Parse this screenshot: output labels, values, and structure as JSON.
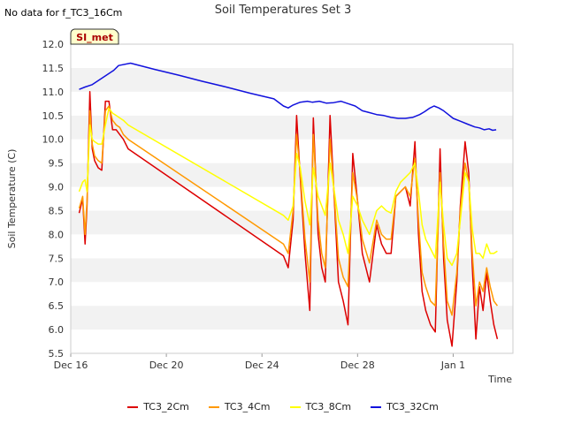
{
  "header": {
    "nodata_text": "No data for f_TC3_16Cm",
    "title": "Soil Temperatures Set 3"
  },
  "badge": {
    "label": "SI_met"
  },
  "chart_data": {
    "type": "line",
    "title": "Soil Temperatures Set 3",
    "xlabel": "Time",
    "ylabel": "Soil Temperature (C)",
    "xlim": [
      0,
      18.5
    ],
    "ylim": [
      5.5,
      12.0
    ],
    "yticks": [
      5.5,
      6.0,
      6.5,
      7.0,
      7.5,
      8.0,
      8.5,
      9.0,
      9.5,
      10.0,
      10.5,
      11.0,
      11.5,
      12.0
    ],
    "xticks": [
      {
        "value": 0,
        "label": "Dec 16"
      },
      {
        "value": 4,
        "label": "Dec 20"
      },
      {
        "value": 8,
        "label": "Dec 24"
      },
      {
        "value": 12,
        "label": "Dec 28"
      },
      {
        "value": 16,
        "label": "Jan 1"
      }
    ],
    "x_unit": "days since Dec 16",
    "grid": "alternating horizontal bands",
    "legend_position": "bottom",
    "series": [
      {
        "name": "TC3_2Cm",
        "color": "#dd0000",
        "x": [
          0.35,
          0.5,
          0.6,
          0.68,
          0.8,
          0.9,
          1.0,
          1.15,
          1.3,
          1.45,
          1.6,
          1.75,
          1.9,
          2.05,
          2.2,
          2.4,
          8.9,
          9.1,
          9.3,
          9.45,
          9.6,
          9.8,
          10.0,
          10.15,
          10.35,
          10.5,
          10.65,
          10.85,
          11.0,
          11.2,
          11.4,
          11.6,
          11.8,
          12.0,
          12.2,
          12.5,
          12.8,
          13.0,
          13.2,
          13.4,
          13.6,
          13.8,
          14.0,
          14.2,
          14.4,
          14.55,
          14.7,
          14.85,
          15.05,
          15.25,
          15.45,
          15.6,
          15.75,
          15.95,
          16.15,
          16.3,
          16.5,
          16.65,
          16.8,
          16.95,
          17.1,
          17.25,
          17.4,
          17.55,
          17.7,
          17.85
        ],
        "values": [
          8.45,
          8.75,
          7.8,
          8.6,
          11.0,
          9.8,
          9.55,
          9.4,
          9.35,
          10.8,
          10.8,
          10.2,
          10.2,
          10.1,
          10.0,
          9.8,
          7.55,
          7.3,
          8.3,
          10.5,
          9.2,
          7.6,
          6.4,
          10.45,
          8.0,
          7.3,
          7.0,
          10.5,
          9.0,
          7.0,
          6.6,
          6.1,
          9.7,
          8.7,
          7.6,
          7.0,
          8.2,
          7.8,
          7.6,
          7.6,
          8.8,
          8.9,
          9.0,
          8.6,
          9.95,
          8.0,
          6.8,
          6.4,
          6.1,
          5.95,
          9.8,
          7.5,
          6.2,
          5.65,
          7.0,
          8.6,
          9.95,
          9.3,
          7.3,
          5.8,
          6.9,
          6.4,
          7.2,
          6.6,
          6.1,
          5.8
        ]
      },
      {
        "name": "TC3_4Cm",
        "color": "#ff9900",
        "x": [
          0.35,
          0.5,
          0.6,
          0.68,
          0.8,
          0.9,
          1.0,
          1.15,
          1.3,
          1.45,
          1.6,
          1.75,
          1.9,
          2.05,
          2.2,
          2.4,
          8.9,
          9.1,
          9.3,
          9.45,
          9.6,
          9.8,
          10.0,
          10.15,
          10.35,
          10.5,
          10.65,
          10.85,
          11.0,
          11.2,
          11.4,
          11.6,
          11.8,
          12.0,
          12.2,
          12.5,
          12.8,
          13.0,
          13.2,
          13.4,
          13.6,
          13.8,
          14.0,
          14.2,
          14.4,
          14.55,
          14.7,
          14.85,
          15.05,
          15.25,
          15.45,
          15.6,
          15.75,
          15.95,
          16.15,
          16.3,
          16.5,
          16.65,
          16.8,
          16.95,
          17.1,
          17.25,
          17.4,
          17.55,
          17.7,
          17.85
        ],
        "values": [
          8.55,
          8.8,
          8.0,
          8.7,
          10.6,
          9.9,
          9.65,
          9.55,
          9.5,
          10.6,
          10.7,
          10.4,
          10.3,
          10.25,
          10.1,
          10.0,
          7.8,
          7.6,
          8.5,
          10.1,
          9.3,
          7.9,
          7.0,
          10.1,
          8.3,
          7.6,
          7.3,
          10.0,
          9.0,
          7.5,
          7.1,
          6.9,
          9.3,
          8.7,
          7.9,
          7.4,
          8.3,
          8.0,
          7.9,
          7.9,
          8.8,
          8.9,
          9.0,
          8.8,
          9.6,
          8.3,
          7.2,
          6.9,
          6.6,
          6.5,
          9.3,
          7.8,
          6.6,
          6.3,
          7.2,
          8.5,
          9.5,
          9.1,
          7.6,
          6.5,
          7.0,
          6.8,
          7.3,
          6.9,
          6.6,
          6.5
        ]
      },
      {
        "name": "TC3_8Cm",
        "color": "#ffff00",
        "x": [
          0.35,
          0.5,
          0.6,
          0.68,
          0.8,
          0.9,
          1.0,
          1.15,
          1.3,
          1.45,
          1.6,
          1.75,
          1.9,
          2.05,
          2.2,
          2.4,
          8.9,
          9.1,
          9.3,
          9.45,
          9.6,
          9.8,
          10.0,
          10.15,
          10.35,
          10.5,
          10.65,
          10.85,
          11.0,
          11.2,
          11.4,
          11.6,
          11.8,
          12.0,
          12.2,
          12.5,
          12.8,
          13.0,
          13.2,
          13.4,
          13.6,
          13.8,
          14.0,
          14.2,
          14.4,
          14.55,
          14.7,
          14.85,
          15.05,
          15.25,
          15.45,
          15.6,
          15.75,
          15.95,
          16.15,
          16.3,
          16.5,
          16.65,
          16.8,
          16.95,
          17.1,
          17.25,
          17.4,
          17.55,
          17.7,
          17.85
        ],
        "values": [
          8.9,
          9.1,
          9.15,
          8.9,
          10.3,
          10.0,
          9.95,
          9.9,
          9.9,
          10.3,
          10.65,
          10.55,
          10.5,
          10.45,
          10.4,
          10.3,
          8.4,
          8.3,
          8.6,
          9.7,
          9.4,
          8.7,
          8.2,
          9.4,
          8.8,
          8.6,
          8.4,
          9.5,
          9.0,
          8.3,
          8.0,
          7.6,
          8.8,
          8.6,
          8.3,
          8.0,
          8.5,
          8.6,
          8.5,
          8.45,
          8.9,
          9.1,
          9.2,
          9.3,
          9.5,
          8.9,
          8.2,
          7.9,
          7.7,
          7.5,
          9.1,
          8.2,
          7.5,
          7.35,
          7.6,
          8.3,
          9.3,
          9.1,
          8.1,
          7.6,
          7.6,
          7.5,
          7.8,
          7.6,
          7.6,
          7.65
        ]
      },
      {
        "name": "TC3_32Cm",
        "color": "#1111dd",
        "x": [
          0.35,
          0.6,
          0.9,
          1.2,
          1.5,
          1.8,
          2.0,
          2.5,
          3.5,
          4.5,
          5.5,
          6.5,
          7.5,
          8.5,
          8.9,
          9.1,
          9.3,
          9.6,
          9.9,
          10.1,
          10.4,
          10.7,
          11.0,
          11.3,
          11.6,
          11.9,
          12.2,
          12.5,
          12.8,
          13.1,
          13.4,
          13.7,
          14.0,
          14.3,
          14.6,
          14.8,
          15.0,
          15.2,
          15.4,
          15.6,
          15.8,
          16.0,
          16.3,
          16.6,
          16.9,
          17.1,
          17.3,
          17.5,
          17.65,
          17.8
        ],
        "values": [
          11.05,
          11.1,
          11.15,
          11.25,
          11.35,
          11.45,
          11.55,
          11.6,
          11.47,
          11.35,
          11.22,
          11.1,
          10.97,
          10.85,
          10.7,
          10.66,
          10.72,
          10.78,
          10.8,
          10.78,
          10.8,
          10.76,
          10.77,
          10.8,
          10.75,
          10.7,
          10.6,
          10.56,
          10.52,
          10.5,
          10.46,
          10.44,
          10.44,
          10.46,
          10.52,
          10.58,
          10.65,
          10.7,
          10.66,
          10.6,
          10.52,
          10.44,
          10.38,
          10.32,
          10.26,
          10.24,
          10.2,
          10.22,
          10.19,
          10.2
        ]
      }
    ]
  }
}
